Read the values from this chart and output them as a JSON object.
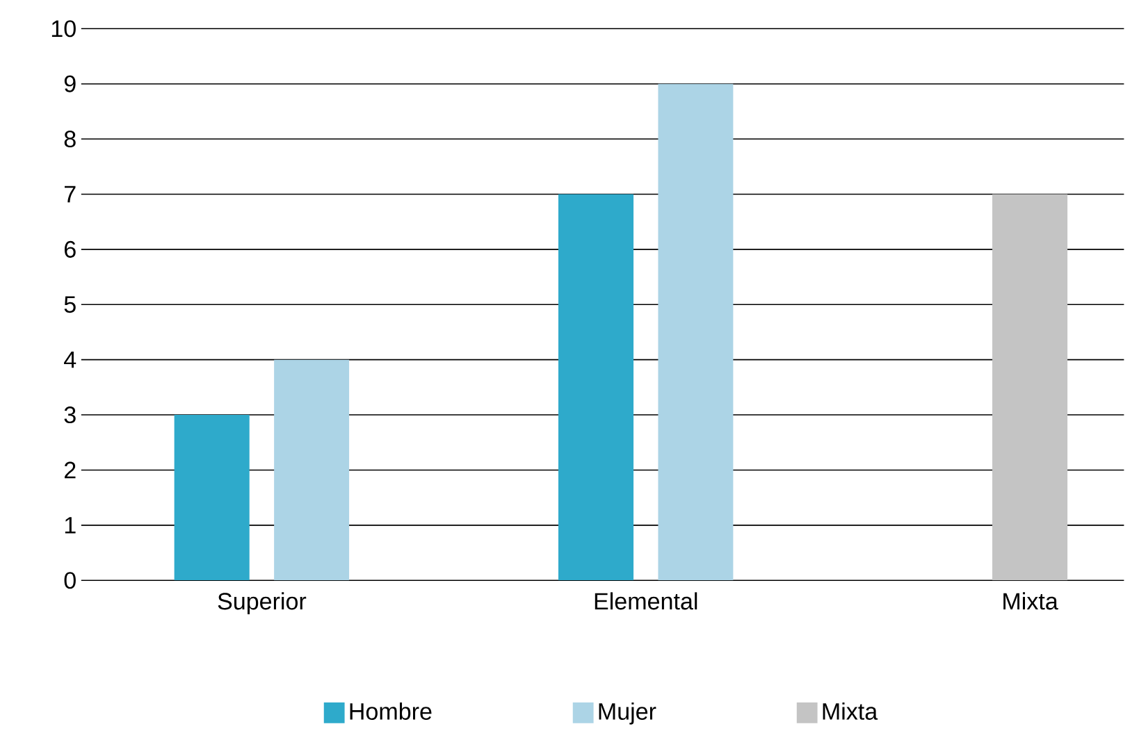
{
  "chart_data": {
    "type": "bar",
    "categories": [
      "Superior",
      "Elemental",
      "Mixta"
    ],
    "series": [
      {
        "name": "Hombre",
        "color": "#2eaacb",
        "values": [
          3,
          7,
          null
        ]
      },
      {
        "name": "Mujer",
        "color": "#acd4e6",
        "values": [
          4,
          9,
          null
        ]
      },
      {
        "name": "Mixta",
        "color": "#c4c4c4",
        "values": [
          null,
          null,
          7
        ]
      }
    ],
    "ylim": [
      0,
      10
    ],
    "yticks": [
      0,
      1,
      2,
      3,
      4,
      5,
      6,
      7,
      8,
      9,
      10
    ],
    "grid": "y",
    "legend": "bottom"
  }
}
